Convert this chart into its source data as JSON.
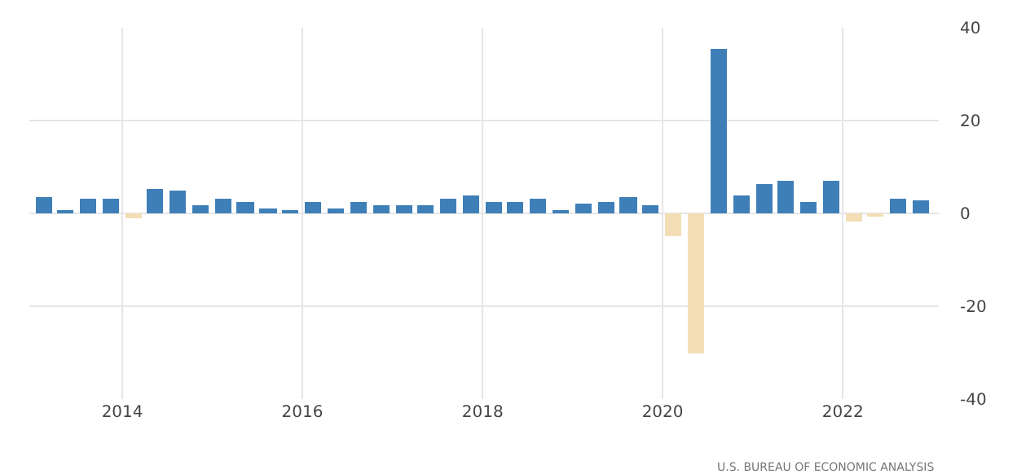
{
  "chart_data": {
    "type": "bar",
    "x": [
      "2013-02-15",
      "2013-05-15",
      "2013-08-15",
      "2013-11-15",
      "2014-02-15",
      "2014-05-15",
      "2014-08-15",
      "2014-11-15",
      "2015-02-15",
      "2015-05-15",
      "2015-08-15",
      "2015-11-15",
      "2016-02-15",
      "2016-05-15",
      "2016-08-15",
      "2016-11-15",
      "2017-02-15",
      "2017-05-15",
      "2017-08-15",
      "2017-11-15",
      "2018-02-15",
      "2018-05-15",
      "2018-08-15",
      "2018-11-15",
      "2019-02-15",
      "2019-05-15",
      "2019-08-15",
      "2019-11-15",
      "2020-02-15",
      "2020-05-15",
      "2020-08-15",
      "2020-11-15",
      "2021-02-15",
      "2021-05-15",
      "2021-08-15",
      "2021-11-15",
      "2022-02-15",
      "2022-05-15",
      "2022-08-15",
      "2022-11-15"
    ],
    "values": [
      3.6,
      0.7,
      3.2,
      3.0,
      -1.2,
      5.1,
      4.8,
      1.7,
      3.2,
      2.3,
      1.1,
      0.6,
      2.3,
      1.0,
      2.4,
      1.8,
      1.6,
      1.8,
      3.1,
      4.0,
      2.6,
      2.6,
      3.0,
      0.7,
      2.0,
      2.6,
      3.5,
      1.7,
      -4.8,
      -30.2,
      35.6,
      3.8,
      6.3,
      6.9,
      2.6,
      6.9,
      -1.6,
      -0.6,
      3.2,
      2.7
    ],
    "colors": [
      "#3f7fb8",
      "#3f7fb8",
      "#3f7fb8",
      "#3f7fb8",
      "#f3deb6",
      "#3f7fb8",
      "#3f7fb8",
      "#3f7fb8",
      "#3f7fb8",
      "#3f7fb8",
      "#3f7fb8",
      "#3f7fb8",
      "#3f7fb8",
      "#3f7fb8",
      "#3f7fb8",
      "#3f7fb8",
      "#3f7fb8",
      "#3f7fb8",
      "#3f7fb8",
      "#3f7fb8",
      "#3f7fb8",
      "#3f7fb8",
      "#3f7fb8",
      "#3f7fb8",
      "#3f7fb8",
      "#3f7fb8",
      "#3f7fb8",
      "#3f7fb8",
      "#f3deb6",
      "#f3deb6",
      "#3f7fb8",
      "#3f7fb8",
      "#3f7fb8",
      "#3f7fb8",
      "#3f7fb8",
      "#3f7fb8",
      "#f3deb6",
      "#f3deb6",
      "#3f7fb8",
      "#3f7fb8"
    ],
    "xlim": [
      "2012-12-20",
      "2023-01-25"
    ],
    "xticks": [
      {
        "value": "2014-01-01",
        "label": "2014"
      },
      {
        "value": "2016-01-01",
        "label": "2016"
      },
      {
        "value": "2018-01-01",
        "label": "2018"
      },
      {
        "value": "2020-01-01",
        "label": "2020"
      },
      {
        "value": "2022-01-01",
        "label": "2022"
      }
    ],
    "ylim": [
      -40,
      40
    ],
    "yticks": [
      -40,
      -20,
      0,
      20,
      40
    ],
    "grid": true,
    "legend": false,
    "annotations": [
      "U.S. BUREAU OF ECONOMIC ANALYSIS"
    ]
  }
}
